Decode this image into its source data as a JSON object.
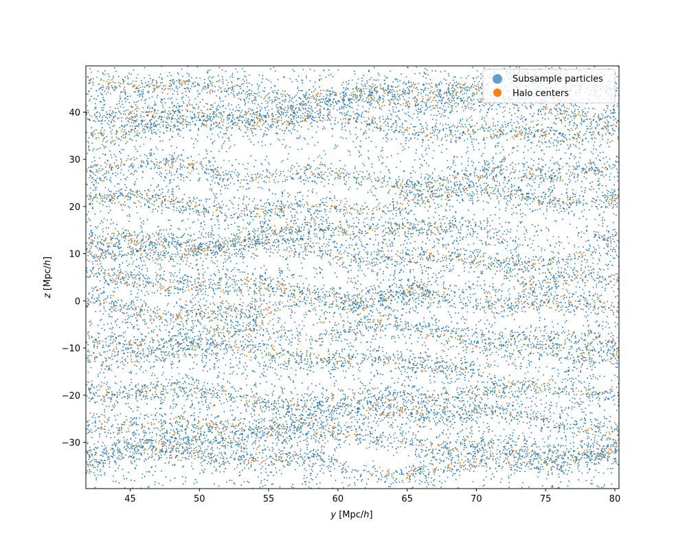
{
  "chart_data": {
    "type": "scatter",
    "title": "",
    "xlabel_var": "y",
    "xlabel_units": "[Mpc/",
    "xlabel_h": "h",
    "xlabel_close": "]",
    "ylabel_var": "z",
    "ylabel_units": "[Mpc/",
    "ylabel_h": "h",
    "ylabel_close": "]",
    "xlim": [
      41.8,
      80.3
    ],
    "ylim": [
      -39.8,
      49.8
    ],
    "xticks": [
      45,
      50,
      55,
      60,
      65,
      70,
      75,
      80
    ],
    "yticks": [
      -30,
      -20,
      -10,
      0,
      10,
      20,
      30,
      40
    ],
    "grid": false,
    "legend_position": "top-right",
    "series": [
      {
        "name": "Subsample particles",
        "color": "#1f77b4",
        "point_count_approx": 15000,
        "distribution": "cosmic-web filaments spanning the full y/z range"
      },
      {
        "name": "Halo centers",
        "color": "#ff7f0e",
        "point_count_approx": 2500,
        "distribution": "clustered along the densest filaments"
      }
    ],
    "filament_z_bands": [
      45,
      41,
      37,
      27,
      21,
      14,
      10,
      3,
      -1,
      -7,
      -12,
      -20,
      -25,
      -30,
      -34
    ],
    "void_regions_approx": [
      {
        "y": 54,
        "z": 30
      },
      {
        "y": 61,
        "z": 23
      },
      {
        "y": 58,
        "z": -4
      },
      {
        "y": 63,
        "z": -33
      },
      {
        "y": 70,
        "z": 3
      },
      {
        "y": 76,
        "z": 12
      },
      {
        "y": 73,
        "z": -14
      }
    ]
  }
}
